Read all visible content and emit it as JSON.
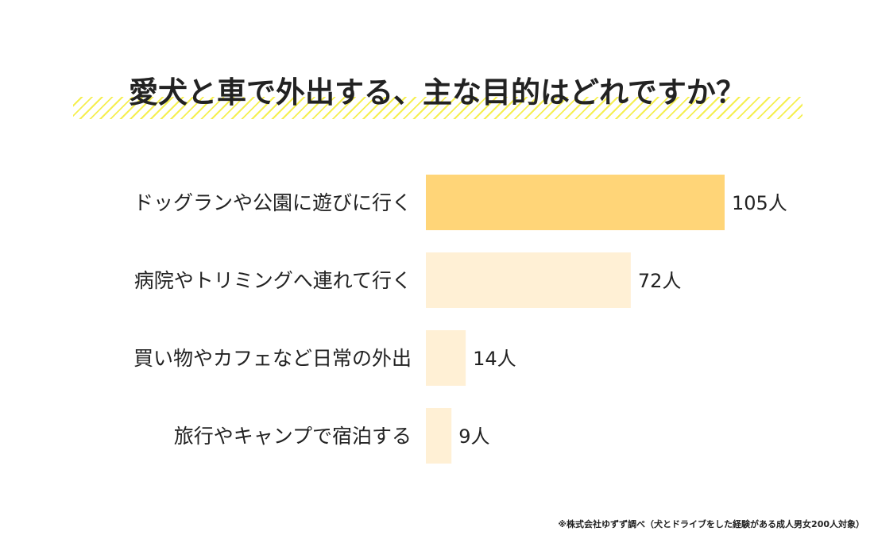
{
  "title": "愛犬と車で外出する、主な目的はどれですか？",
  "footnote": "※株式会社ゆずず調べ（犬とドライブをした経験がある成人男女200人対象）",
  "chart_data": {
    "type": "bar",
    "orientation": "horizontal",
    "title": "愛犬と車で外出する、主な目的はどれですか？",
    "categories": [
      "ドッグランや公園に遊びに行く",
      "病院やトリミングへ連れて行く",
      "買い物やカフェなど日常の外出",
      "旅行やキャンプで宿泊する"
    ],
    "values": [
      105,
      72,
      14,
      9
    ],
    "value_suffix": "人",
    "colors": [
      "#FFD578",
      "#FFF0D5",
      "#FFF0D5",
      "#FFF0D5"
    ],
    "grid": false,
    "xlim": [
      0,
      105
    ]
  }
}
